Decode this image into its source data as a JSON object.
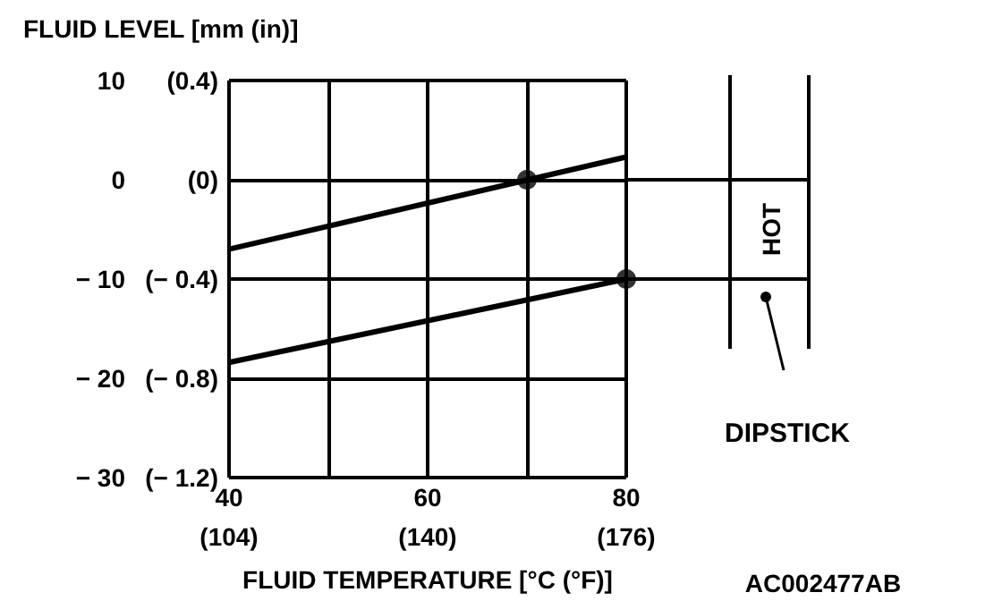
{
  "chart_data": {
    "type": "line",
    "title": "FLUID LEVEL [mm (in)]",
    "xlabel": "FLUID TEMPERATURE [°C (°F)]",
    "annotations": [
      "HOT",
      "DIPSTICK",
      "AC002477AB"
    ],
    "x": [
      40,
      80
    ],
    "series": [
      {
        "color": "#000000",
        "values": [
          -7,
          2.3
        ]
      },
      {
        "color": "#000000",
        "values": [
          -18.4,
          -10
        ]
      },
      {
        "type": "scatter",
        "color": "#000000",
        "marker": "circle",
        "x": [
          70,
          80
        ],
        "values": [
          0,
          -10
        ]
      }
    ],
    "xlim": [
      40,
      80
    ],
    "xticks": [
      40,
      {
        "value": 50,
        "label": null
      },
      60,
      {
        "value": 70,
        "label": null
      },
      80
    ],
    "x2lim": [
      104,
      176
    ],
    "x2ticks": [
      {
        "value": 104,
        "label": "(104)"
      },
      {
        "value": 140,
        "label": "(140)"
      },
      {
        "value": 176,
        "label": "(176)"
      }
    ],
    "ylim": [
      -30,
      10
    ],
    "yticks": [
      10,
      0,
      {
        "value": -10,
        "label": "− 10"
      },
      {
        "value": -20,
        "label": "− 20"
      },
      {
        "value": -30,
        "label": "− 30"
      }
    ],
    "y2lim": [
      -1.2,
      0.4
    ],
    "y2ticks": [
      {
        "value": 0.4,
        "label": "(0.4)"
      },
      {
        "value": 0,
        "label": "(0)"
      },
      {
        "value": -0.4,
        "label": "(− 0.4)"
      },
      {
        "value": -0.8,
        "label": "(− 0.8)"
      },
      {
        "value": -1.2,
        "label": "(− 1.2)"
      }
    ],
    "grid": true
  }
}
